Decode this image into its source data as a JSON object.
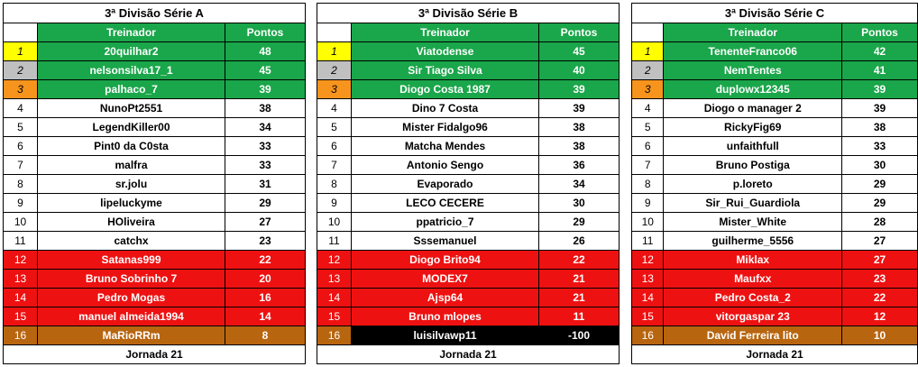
{
  "colors": {
    "green": "#1aa64a",
    "red": "#ee1111",
    "brown": "#b8650f",
    "black": "#000000",
    "gold": "#ffff00",
    "silver": "#c0c0c0",
    "bronze": "#f7941d"
  },
  "tables": [
    {
      "title": "3ª Divisão Série A",
      "headers": {
        "name": "Treinador",
        "points": "Pontos"
      },
      "footer": "Jornada 21",
      "rows": [
        {
          "pos": "1",
          "name": "20quilhar2",
          "points": "48",
          "style": "green",
          "medal": "gold"
        },
        {
          "pos": "2",
          "name": "nelsonsilva17_1",
          "points": "45",
          "style": "green",
          "medal": "silver"
        },
        {
          "pos": "3",
          "name": "palhaco_7",
          "points": "39",
          "style": "green",
          "medal": "bronze"
        },
        {
          "pos": "4",
          "name": "NunoPt2551",
          "points": "38",
          "style": "white"
        },
        {
          "pos": "5",
          "name": "LegendKiller00",
          "points": "34",
          "style": "white"
        },
        {
          "pos": "6",
          "name": "Pint0 da C0sta",
          "points": "33",
          "style": "white"
        },
        {
          "pos": "7",
          "name": "malfra",
          "points": "33",
          "style": "white"
        },
        {
          "pos": "8",
          "name": "sr.jolu",
          "points": "31",
          "style": "white"
        },
        {
          "pos": "9",
          "name": "lipeluckyme",
          "points": "29",
          "style": "white"
        },
        {
          "pos": "10",
          "name": "HOliveira",
          "points": "27",
          "style": "white"
        },
        {
          "pos": "11",
          "name": "catchx",
          "points": "23",
          "style": "white"
        },
        {
          "pos": "12",
          "name": "Satanas999",
          "points": "22",
          "style": "red"
        },
        {
          "pos": "13",
          "name": "Bruno Sobrinho 7",
          "points": "20",
          "style": "red"
        },
        {
          "pos": "14",
          "name": "Pedro Mogas",
          "points": "16",
          "style": "red"
        },
        {
          "pos": "15",
          "name": "manuel almeida1994",
          "points": "14",
          "style": "red"
        },
        {
          "pos": "16",
          "name": "MaRioRRm",
          "points": "8",
          "style": "brown"
        }
      ]
    },
    {
      "title": "3ª Divisão Série B",
      "headers": {
        "name": "Treinador",
        "points": "Pontos"
      },
      "footer": "Jornada 21",
      "rows": [
        {
          "pos": "1",
          "name": "Viatodense",
          "points": "45",
          "style": "green",
          "medal": "gold"
        },
        {
          "pos": "2",
          "name": "Sir Tiago Silva",
          "points": "40",
          "style": "green",
          "medal": "silver"
        },
        {
          "pos": "3",
          "name": "Diogo Costa 1987",
          "points": "39",
          "style": "green",
          "medal": "bronze"
        },
        {
          "pos": "4",
          "name": "Dino 7 Costa",
          "points": "39",
          "style": "white"
        },
        {
          "pos": "5",
          "name": "Mister Fidalgo96",
          "points": "38",
          "style": "white"
        },
        {
          "pos": "6",
          "name": "Matcha Mendes",
          "points": "38",
          "style": "white"
        },
        {
          "pos": "7",
          "name": "Antonio Sengo",
          "points": "36",
          "style": "white"
        },
        {
          "pos": "8",
          "name": "Evaporado",
          "points": "34",
          "style": "white"
        },
        {
          "pos": "9",
          "name": "LECO CECERE",
          "points": "30",
          "style": "white"
        },
        {
          "pos": "10",
          "name": "ppatricio_7",
          "points": "29",
          "style": "white"
        },
        {
          "pos": "11",
          "name": "Sssemanuel",
          "points": "26",
          "style": "white"
        },
        {
          "pos": "12",
          "name": "Diogo Brito94",
          "points": "22",
          "style": "red"
        },
        {
          "pos": "13",
          "name": "MODEX7",
          "points": "21",
          "style": "red"
        },
        {
          "pos": "14",
          "name": "Ajsp64",
          "points": "21",
          "style": "red"
        },
        {
          "pos": "15",
          "name": "Bruno mlopes",
          "points": "11",
          "style": "red"
        },
        {
          "pos": "16",
          "name": "luisilvawp11",
          "points": "-100",
          "style": "black"
        }
      ]
    },
    {
      "title": "3ª Divisão Série C",
      "headers": {
        "name": "Treinador",
        "points": "Pontos"
      },
      "footer": "Jornada 21",
      "rows": [
        {
          "pos": "1",
          "name": "TenenteFranco06",
          "points": "42",
          "style": "green",
          "medal": "gold"
        },
        {
          "pos": "2",
          "name": "NemTentes",
          "points": "41",
          "style": "green",
          "medal": "silver"
        },
        {
          "pos": "3",
          "name": "duplowx12345",
          "points": "39",
          "style": "green",
          "medal": "bronze"
        },
        {
          "pos": "4",
          "name": "Diogo o manager 2",
          "points": "39",
          "style": "white"
        },
        {
          "pos": "5",
          "name": "RickyFig69",
          "points": "38",
          "style": "white"
        },
        {
          "pos": "6",
          "name": "unfaithfull",
          "points": "33",
          "style": "white"
        },
        {
          "pos": "7",
          "name": "Bruno Postiga",
          "points": "30",
          "style": "white"
        },
        {
          "pos": "8",
          "name": "p.loreto",
          "points": "29",
          "style": "white"
        },
        {
          "pos": "9",
          "name": "Sir_Rui_Guardiola",
          "points": "29",
          "style": "white"
        },
        {
          "pos": "10",
          "name": "Mister_White",
          "points": "28",
          "style": "white"
        },
        {
          "pos": "11",
          "name": "guilherme_5556",
          "points": "27",
          "style": "white"
        },
        {
          "pos": "12",
          "name": "Miklax",
          "points": "27",
          "style": "red"
        },
        {
          "pos": "13",
          "name": "Maufxx",
          "points": "23",
          "style": "red"
        },
        {
          "pos": "14",
          "name": "Pedro Costa_2",
          "points": "22",
          "style": "red"
        },
        {
          "pos": "15",
          "name": "vitorgaspar 23",
          "points": "12",
          "style": "red"
        },
        {
          "pos": "16",
          "name": "David Ferreira lito",
          "points": "10",
          "style": "brown"
        }
      ]
    }
  ]
}
